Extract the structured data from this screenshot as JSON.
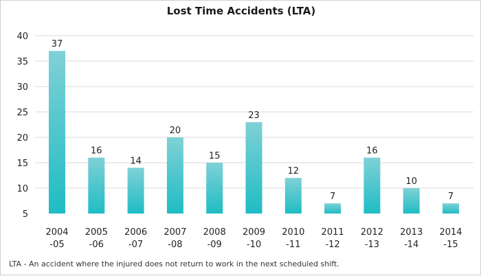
{
  "chart_data": {
    "type": "bar",
    "title": "Lost Time Accidents (LTA)",
    "categories": [
      [
        "2004",
        "-05"
      ],
      [
        "2005",
        "-06"
      ],
      [
        "2006",
        "-07"
      ],
      [
        "2007",
        "-08"
      ],
      [
        "2008",
        "-09"
      ],
      [
        "2009",
        "-10"
      ],
      [
        "2010",
        "-11"
      ],
      [
        "2011",
        "-12"
      ],
      [
        "2012",
        "-13"
      ],
      [
        "2013",
        "-14"
      ],
      [
        "2014",
        "-15"
      ]
    ],
    "values": [
      37,
      16,
      14,
      20,
      15,
      23,
      12,
      7,
      16,
      10,
      7
    ],
    "y_ticks": [
      40,
      35,
      30,
      25,
      20,
      15,
      10,
      5
    ],
    "ylim": [
      5,
      40
    ],
    "grid": "horizontal",
    "bar_color_top": "#7fd1d6",
    "bar_color_bottom": "#1fbcc4"
  },
  "footnote": "LTA - An accident where the injured does not return to work in the next scheduled shift."
}
